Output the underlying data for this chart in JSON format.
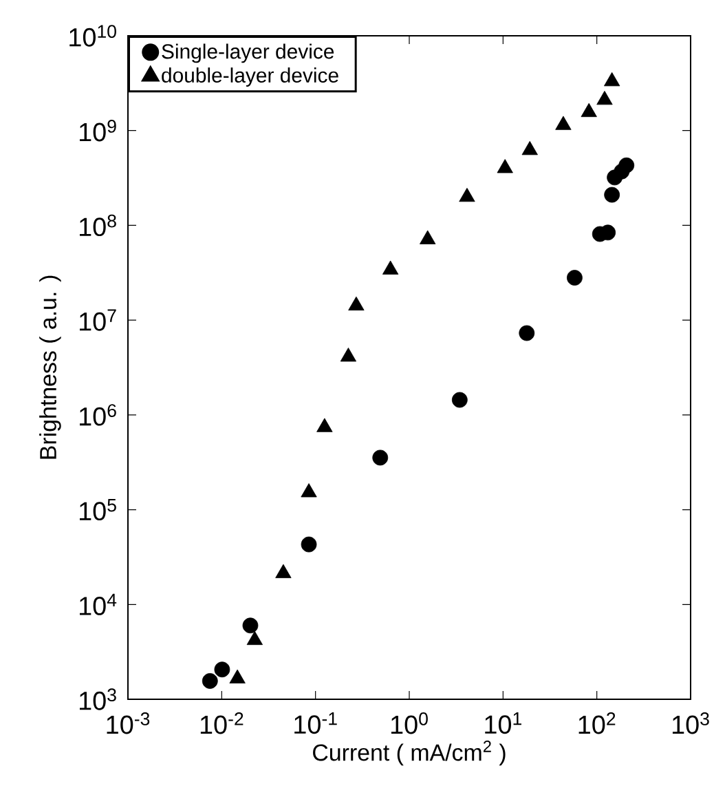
{
  "chart_data": {
    "type": "scatter",
    "xlabel": "Current ( mA/cm$^{2}$ )",
    "ylabel": "Brightness ( a.u. )",
    "log": "xy",
    "grid": false,
    "legend": "top left",
    "xlim": [
      0.001,
      1000
    ],
    "ylim": [
      1000,
      10000000000
    ],
    "xticks": [
      {
        "value": 0.001,
        "label": "10$^{-3}$"
      },
      {
        "value": 0.01,
        "label": "10$^{-2}$"
      },
      {
        "value": 0.1,
        "label": "10$^{-1}$"
      },
      {
        "value": 1,
        "label": "10$^{0}$"
      },
      {
        "value": 10,
        "label": "10$^{1}$"
      },
      {
        "value": 100,
        "label": "10$^{2}$"
      },
      {
        "value": 1000,
        "label": "10$^{3}$"
      }
    ],
    "yticks": [
      {
        "value": 1000,
        "label": "10$^{3}$"
      },
      {
        "value": 10000,
        "label": "10$^{4}$"
      },
      {
        "value": 100000,
        "label": "10$^{5}$"
      },
      {
        "value": 1000000,
        "label": "10$^{6}$"
      },
      {
        "value": 10000000,
        "label": "10$^{7}$"
      },
      {
        "value": 100000000,
        "label": "10$^{8}$"
      },
      {
        "value": 1000000000,
        "label": "10$^{9}$"
      },
      {
        "value": 10000000000,
        "label": "10$^{10}$"
      }
    ],
    "series": [
      {
        "name": "Single-layer device",
        "color": "#000000",
        "marker": "circle",
        "x": [
          0.0075,
          0.0101,
          0.0202,
          0.085,
          0.49,
          3.45,
          17.9,
          58,
          108,
          131,
          145,
          155,
          184,
          207
        ],
        "values": [
          1560,
          2060,
          6000,
          43000,
          354000,
          1440000,
          7300000,
          28000000,
          81000000,
          84000000,
          210000000,
          320000000,
          370000000,
          430000000
        ]
      },
      {
        "name": "double-layer device",
        "color": "#000000",
        "marker": "triangle",
        "x": [
          0.0147,
          0.0225,
          0.0454,
          0.085,
          0.125,
          0.224,
          0.272,
          0.63,
          1.57,
          4.13,
          10.5,
          19.3,
          43.9,
          82.4,
          121,
          145
        ],
        "values": [
          1650,
          4200,
          21300,
          152000,
          740000,
          4100000,
          14200000,
          34000000,
          71000000,
          199000000,
          400000000,
          620000000,
          1140000000,
          1560000000,
          2100000000,
          3300000000
        ]
      }
    ]
  }
}
